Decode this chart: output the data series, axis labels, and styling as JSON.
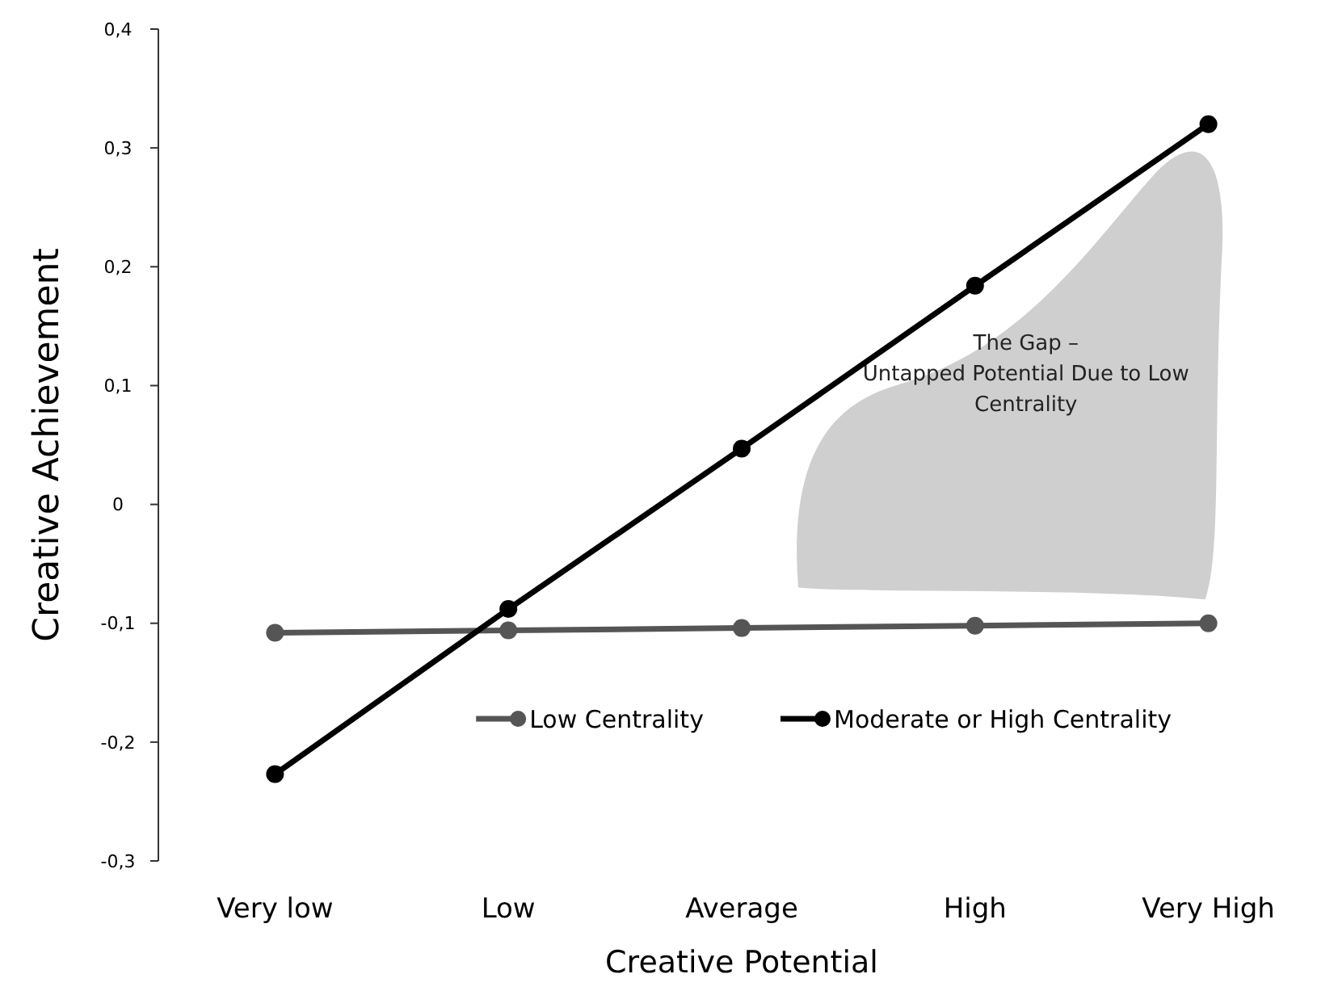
{
  "chart_data": {
    "type": "line",
    "xlabel": "Creative Potential",
    "ylabel": "Creative Achievement",
    "categories": [
      "Very low",
      "Low",
      "Average",
      "High",
      "Very High"
    ],
    "series": [
      {
        "name": "Low Centrality",
        "color": "#555555",
        "values": [
          -0.108,
          -0.106,
          -0.104,
          -0.102,
          -0.1
        ]
      },
      {
        "name": "Moderate or High Centrality",
        "color": "#000000",
        "values": [
          -0.227,
          -0.088,
          0.047,
          0.184,
          0.32
        ]
      }
    ],
    "ylim": [
      -0.3,
      0.4
    ],
    "yticks": [
      {
        "value": -0.3,
        "label": "-0,3"
      },
      {
        "value": -0.2,
        "label": "-0,2"
      },
      {
        "value": -0.1,
        "label": "-0,1"
      },
      {
        "value": 0,
        "label": "0"
      },
      {
        "value": 0.1,
        "label": "0,1"
      },
      {
        "value": 0.2,
        "label": "0,2"
      },
      {
        "value": 0.3,
        "label": "0,3"
      },
      {
        "value": 0.4,
        "label": "0,4"
      }
    ],
    "annotations": [
      "The Gap –\nUntapped Potential Due to Low\nCentrality"
    ],
    "marker": "circle",
    "line_style": "solid",
    "legend": "bottom",
    "grid": false
  }
}
